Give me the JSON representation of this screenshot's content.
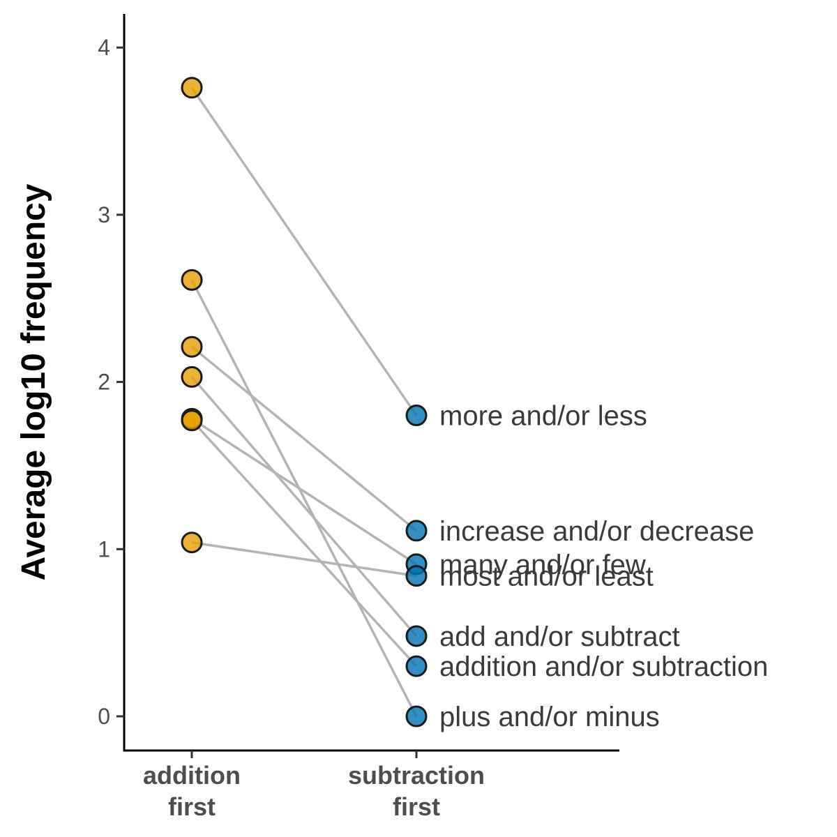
{
  "chart_data": {
    "type": "scatter",
    "subtype": "paired-dot-slope",
    "title": "",
    "xlabel": "",
    "ylabel": "Average log10 frequency",
    "categories": [
      "addition\nfirst",
      "subtraction\nfirst"
    ],
    "ylim": [
      -0.18,
      4.2
    ],
    "yticks": [
      0,
      1,
      2,
      3,
      4
    ],
    "grid": false,
    "legend": "none",
    "colors": {
      "addition_first": "#E69F00",
      "subtraction_first": "#0072B2",
      "connector": "#b3b3b3"
    },
    "pairs": [
      {
        "label": "more and/or less",
        "addition_first": 3.76,
        "subtraction_first": 1.8
      },
      {
        "label": "increase and/or decrease",
        "addition_first": 2.21,
        "subtraction_first": 1.11
      },
      {
        "label": "many and/or few",
        "addition_first": 1.78,
        "subtraction_first": 0.91
      },
      {
        "label": "most and/or least",
        "addition_first": 1.04,
        "subtraction_first": 0.84
      },
      {
        "label": "add and/or subtract",
        "addition_first": 2.03,
        "subtraction_first": 0.48
      },
      {
        "label": "addition and/or subtraction",
        "addition_first": 1.77,
        "subtraction_first": 0.3
      },
      {
        "label": "plus and/or minus",
        "addition_first": 2.61,
        "subtraction_first": 0.0
      }
    ],
    "label_positions": {
      "more and/or less": 1.8,
      "increase and/or decrease": 1.11,
      "many and/or few": 0.91,
      "most and/or least": 0.84,
      "add and/or subtract": 0.48,
      "addition and/or subtraction": 0.3,
      "plus and/or minus": 0.0
    }
  }
}
